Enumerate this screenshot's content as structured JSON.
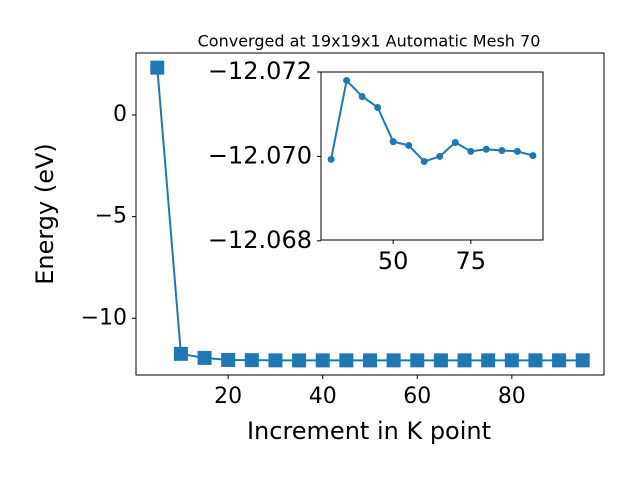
{
  "chart_data": [
    {
      "type": "line",
      "title": "Converged at 19x19x1 Automatic Mesh 70",
      "x_label": "Increment in K point",
      "y_label": "Energy (eV)",
      "marker": "square",
      "x": [
        5,
        10,
        15,
        20,
        25,
        30,
        35,
        40,
        45,
        50,
        55,
        60,
        65,
        70,
        75,
        80,
        85,
        90,
        95
      ],
      "series": [
        {
          "name": "Energy",
          "color": "#1f77b4",
          "values": [
            2.33,
            -11.75,
            -11.95,
            -12.05,
            -12.06,
            -12.06993,
            -12.0718,
            -12.07142,
            -12.07116,
            -12.07035,
            -12.07026,
            -12.06988,
            -12.07,
            -12.07033,
            -12.07012,
            -12.07017,
            -12.07014,
            -12.07012,
            -12.07002
          ]
        }
      ],
      "xlim": [
        0.5,
        99.5
      ],
      "xticks": [
        20,
        40,
        60,
        80
      ],
      "ylim": [
        -12.79,
        3.05
      ],
      "yticks": [
        0,
        {
          "value": -5,
          "label": "−5"
        },
        {
          "value": -10,
          "label": "−10"
        }
      ]
    },
    {
      "type": "line",
      "marker": "circle",
      "x": [
        30,
        35,
        40,
        45,
        50,
        55,
        60,
        65,
        70,
        75,
        80,
        85,
        90,
        95
      ],
      "series": [
        {
          "name": "Energy",
          "color": "#1f77b4",
          "values": [
            -12.06993,
            -12.0718,
            -12.07142,
            -12.07116,
            -12.07035,
            -12.07026,
            -12.06988,
            -12.07,
            -12.07033,
            -12.07012,
            -12.07017,
            -12.07014,
            -12.07012,
            -12.07002
          ]
        }
      ],
      "xlim": [
        26.75,
        98.25
      ],
      "xticks": [
        50,
        75
      ],
      "ylim": [
        -12.06802,
        -12.072
      ],
      "yticks": [
        {
          "value": -12.072,
          "label": "−12.072"
        },
        {
          "value": -12.07,
          "label": "−12.070"
        },
        {
          "value": -12.068,
          "label": "−12.068"
        }
      ]
    }
  ]
}
